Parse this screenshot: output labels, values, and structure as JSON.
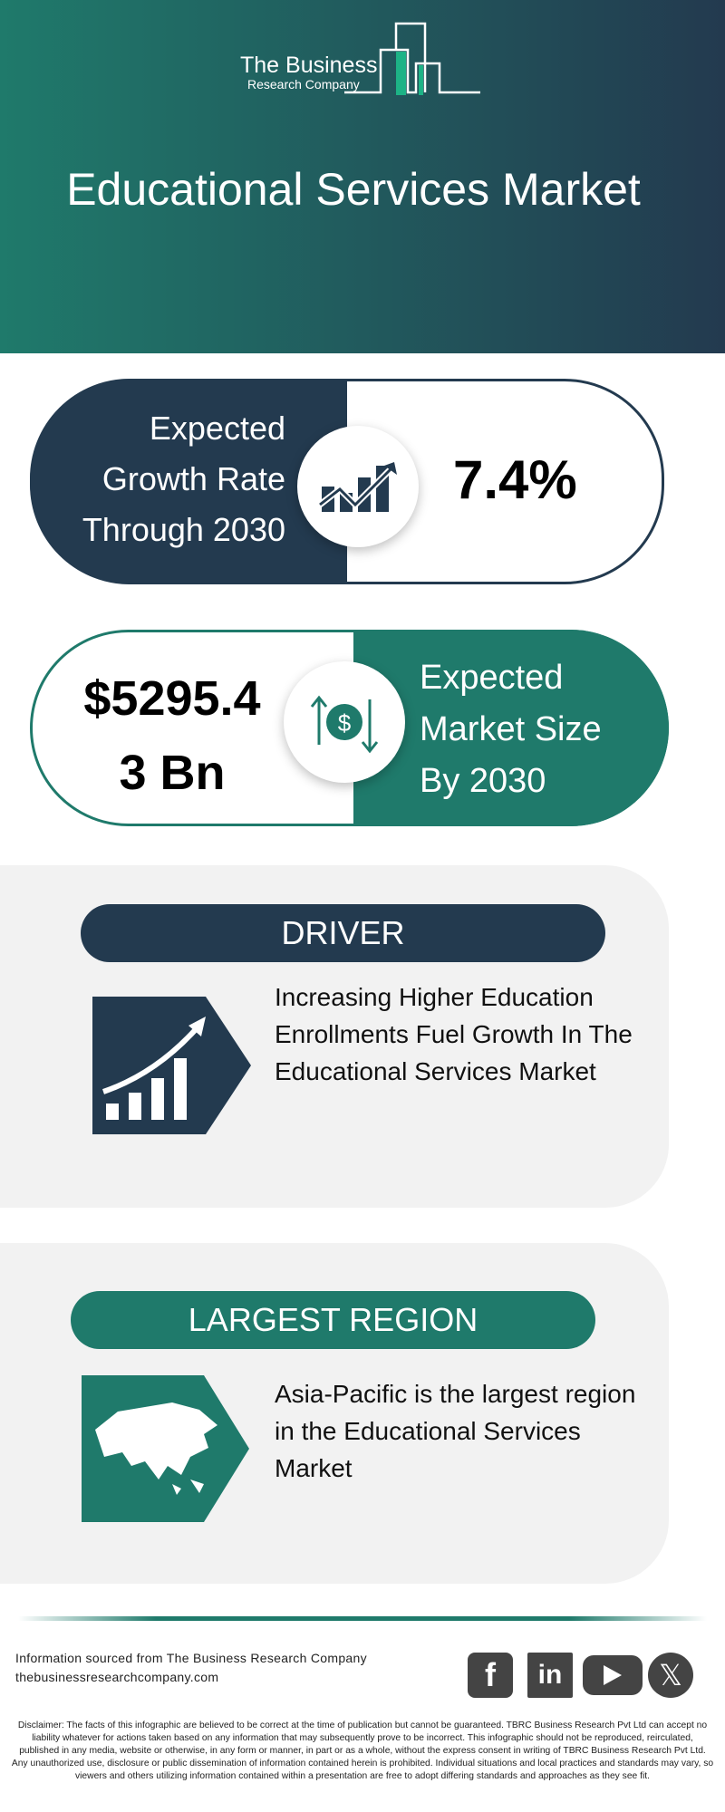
{
  "header": {
    "logo_line1": "The Business",
    "logo_line2": "Research Company",
    "title": "Educational Services Market"
  },
  "growth": {
    "label_lines": [
      "Expected",
      "Growth Rate",
      "Through 2030"
    ],
    "value": "7.4%",
    "icon": "growth-chart-icon"
  },
  "market_size": {
    "value_lines": [
      "$5295.4",
      "3 Bn"
    ],
    "label_lines": [
      "Expected",
      "Market Size",
      "By 2030"
    ],
    "icon": "dollar-exchange-icon"
  },
  "driver": {
    "heading": "DRIVER",
    "text": "Increasing Higher Education Enrollments Fuel Growth In The Educational Services Market",
    "icon": "rising-bar-chart-icon"
  },
  "region": {
    "heading": "LARGEST REGION",
    "text": "Asia-Pacific is the largest region in the Educational Services Market",
    "icon": "asia-map-icon"
  },
  "footer": {
    "source": "Information sourced from The Business Research Company",
    "website": "thebusinessresearchcompany.com",
    "social": [
      "facebook",
      "linkedin",
      "youtube",
      "x"
    ],
    "disclaimer": "Disclaimer: The facts of this infographic are believed to be correct at the time of publication but cannot be guaranteed. TBRC Business Research Pvt Ltd can accept no liability whatever for actions taken based on any information that may subsequently prove to be incorrect. This infographic should not be reproduced, reirculated, published in any media, website or otherwise, in any form or manner, in part or as a whole, without the express consent in writing of TBRC Business Research Pvt Ltd. Any unauthorized use, disclosure or public dissemination of information contained herein is prohibited. Individual situations and local practices and standards may vary, so viewers and others utilizing information contained within a presentation are free to adopt differing standards and approaches as they see fit."
  },
  "colors": {
    "dark": "#233a4f",
    "teal": "#1f7a6b",
    "accent": "#1db386",
    "panel": "#f2f2f2"
  }
}
